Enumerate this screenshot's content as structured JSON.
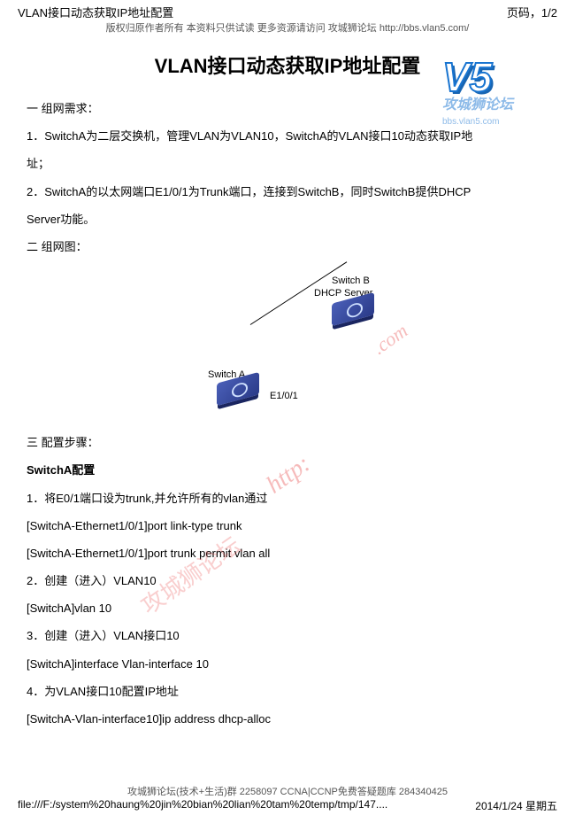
{
  "header": {
    "left": "VLAN接口动态获取IP地址配置",
    "right": "页码，1/2",
    "sub": "版权归原作者所有 本资料只供试读 更多资源请访问 攻城狮论坛 http://bbs.vlan5.com/"
  },
  "title": "VLAN接口动态获取IP地址配置",
  "sections": {
    "s1": "一  组网需求：",
    "p1": "1．SwitchA为二层交换机，管理VLAN为VLAN10，SwitchA的VLAN接口10动态获取IP地",
    "p1b": "址；",
    "p2": "2．SwitchA的以太网端口E1/0/1为Trunk端口，连接到SwitchB，同时SwitchB提供DHCP",
    "p2b": "Server功能。",
    "s2": "二  组网图：",
    "s3": "三  配置步骤：",
    "cfgTitle": "SwitchA配置",
    "c1": "1．将E0/1端口设为trunk,并允许所有的vlan通过",
    "c1a": "[SwitchA-Ethernet1/0/1]port link-type trunk",
    "c1b": "[SwitchA-Ethernet1/0/1]port trunk permit vlan all",
    "c2": "2．创建（进入）VLAN10",
    "c2a": "[SwitchA]vlan 10",
    "c3": "3．创建（进入）VLAN接口10",
    "c3a": "[SwitchA]interface Vlan-interface 10",
    "c4": "4．为VLAN接口10配置IP地址",
    "c4a": "[SwitchA-Vlan-interface10]ip address dhcp-alloc"
  },
  "diagram": {
    "switchB": "Switch B",
    "dhcp": "DHCP Server",
    "switchA": "Switch A",
    "port": "E1/0/1"
  },
  "logo": {
    "v5": "V5",
    "txt": "攻城狮论坛",
    "url": "bbs.vlan5.com"
  },
  "watermark": {
    "http": "http:",
    "forum": "攻城狮论坛",
    "com": ".com"
  },
  "footer": {
    "line1": "攻城狮论坛(技术+生活)群 2258097 CCNA|CCNP免费答疑题库 284340425",
    "path": "file:///F:/system%20haung%20jin%20bian%20lian%20tam%20temp/tmp/147....",
    "date": "2014/1/24 星期五"
  }
}
